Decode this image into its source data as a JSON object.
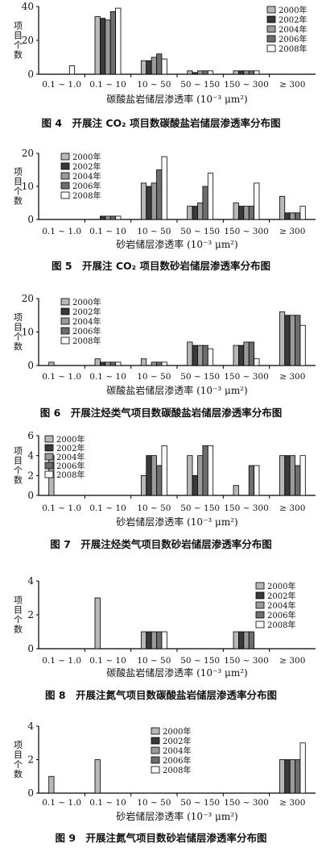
{
  "legend_years": [
    "2000年",
    "2002年",
    "2004年",
    "2006年",
    "2008年"
  ],
  "series_colors": [
    "#b8b8b8",
    "#3a3a3a",
    "#9a9a9a",
    "#6e6e6e",
    "#fafafa"
  ],
  "chart_data": [
    {
      "type": "bar",
      "caption": "图 4　开展注 CO₂ 项目数碳酸盐岩储层渗透率分布图",
      "xlabel": "碳酸盐岩储层渗透率 (10⁻³ μm²)",
      "ylabel": "项目个数",
      "ylim": [
        0,
        40
      ],
      "yticks": [
        0,
        20,
        40
      ],
      "legend": "top-right",
      "categories": [
        "0.1 ~ 1.0",
        "0.1 ~ 10",
        "10 ~ 50",
        "50 ~ 150",
        "150 ~ 300",
        "≥ 300"
      ],
      "series": [
        {
          "name": "2000年",
          "values": [
            0,
            34,
            8,
            2,
            2,
            0
          ]
        },
        {
          "name": "2002年",
          "values": [
            0,
            33,
            8,
            1,
            2,
            0
          ]
        },
        {
          "name": "2004年",
          "values": [
            0,
            32,
            10,
            2,
            2,
            0
          ]
        },
        {
          "name": "2006年",
          "values": [
            0,
            37,
            12,
            2,
            2,
            0
          ]
        },
        {
          "name": "2008年",
          "values": [
            5,
            39,
            9,
            2,
            2,
            0
          ]
        }
      ]
    },
    {
      "type": "bar",
      "caption": "图 5　开展注 CO₂ 项目数砂岩储层渗透率分布图",
      "xlabel": "砂岩储层渗透率 (10⁻³ μm²)",
      "ylabel": "项目个数",
      "ylim": [
        0,
        20
      ],
      "yticks": [
        0,
        10,
        20
      ],
      "legend": "top-left",
      "categories": [
        "0.1 ~ 1.0",
        "0.1 ~ 10",
        "10 ~ 50",
        "50 ~ 150",
        "150 ~ 300",
        "≥ 300"
      ],
      "series": [
        {
          "name": "2000年",
          "values": [
            0,
            0,
            11,
            4,
            5,
            7
          ]
        },
        {
          "name": "2002年",
          "values": [
            0,
            1,
            10,
            4,
            4,
            2
          ]
        },
        {
          "name": "2004年",
          "values": [
            0,
            1,
            11,
            5,
            4,
            2
          ]
        },
        {
          "name": "2006年",
          "values": [
            0,
            1,
            15,
            10,
            4,
            2
          ]
        },
        {
          "name": "2008年",
          "values": [
            0,
            1,
            19,
            14,
            11,
            4
          ]
        }
      ]
    },
    {
      "type": "bar",
      "caption": "图 6　开展注烃类气项目数碳酸盐岩储层渗透率分布图",
      "xlabel": "碳酸盐岩储层渗透率 (10⁻³ μm²)",
      "ylabel": "项目个数",
      "ylim": [
        0,
        20
      ],
      "yticks": [
        0,
        10,
        20
      ],
      "legend": "top-left",
      "categories": [
        "0.1 ~ 1.0",
        "0.1 ~ 10",
        "10 ~ 50",
        "50 ~ 150",
        "150 ~ 300",
        "≥ 300"
      ],
      "series": [
        {
          "name": "2000年",
          "values": [
            1,
            2,
            2,
            7,
            6,
            16
          ]
        },
        {
          "name": "2002年",
          "values": [
            0,
            1,
            0,
            6,
            6,
            15
          ]
        },
        {
          "name": "2004年",
          "values": [
            0,
            1,
            1,
            6,
            7,
            15
          ]
        },
        {
          "name": "2006年",
          "values": [
            0,
            1,
            1,
            6,
            7,
            15
          ]
        },
        {
          "name": "2008年",
          "values": [
            0,
            1,
            1,
            5,
            2,
            12
          ]
        }
      ]
    },
    {
      "type": "bar",
      "caption": "图 7　开展注烃类气项目数砂岩储层渗透率分布图",
      "xlabel": "砂岩储层渗透率 (10⁻³ μm²)",
      "ylabel": "项目个数",
      "ylim": [
        0,
        6
      ],
      "yticks": [
        0,
        2,
        4,
        6
      ],
      "legend": "top-left",
      "categories": [
        "0.1 ~ 1.0",
        "0.1 ~ 10",
        "10 ~ 50",
        "50 ~ 150",
        "150 ~ 300",
        "≥ 300"
      ],
      "series": [
        {
          "name": "2000年",
          "values": [
            4,
            0,
            2,
            4,
            1,
            4
          ]
        },
        {
          "name": "2002年",
          "values": [
            0,
            0,
            4,
            2,
            0,
            4
          ]
        },
        {
          "name": "2004年",
          "values": [
            0,
            0,
            4,
            4,
            0,
            4
          ]
        },
        {
          "name": "2006年",
          "values": [
            0,
            0,
            3,
            5,
            3,
            3
          ]
        },
        {
          "name": "2008年",
          "values": [
            0,
            0,
            5,
            5,
            3,
            4
          ]
        }
      ]
    },
    {
      "type": "bar",
      "caption": "图 8　开展注氮气项目数碳酸盐岩储层渗透率分布图",
      "xlabel": "碳酸盐岩储层渗透率 (10⁻³ μm²)",
      "ylabel": "项目个数",
      "ylim": [
        0,
        4
      ],
      "yticks": [
        0,
        2,
        4
      ],
      "legend": "top-right",
      "categories": [
        "0.1 ~ 1.0",
        "0.1 ~ 10",
        "10 ~ 50",
        "50 ~ 150",
        "150 ~ 300",
        "≥ 300"
      ],
      "series": [
        {
          "name": "2000年",
          "values": [
            0,
            3,
            1,
            0,
            1,
            0
          ]
        },
        {
          "name": "2002年",
          "values": [
            0,
            0,
            1,
            0,
            1,
            0
          ]
        },
        {
          "name": "2004年",
          "values": [
            0,
            0,
            1,
            0,
            1,
            0
          ]
        },
        {
          "name": "2006年",
          "values": [
            0,
            0,
            1,
            0,
            1,
            0
          ]
        },
        {
          "name": "2008年",
          "values": [
            0,
            0,
            1,
            0,
            0,
            0
          ]
        }
      ]
    },
    {
      "type": "bar",
      "caption": "图 9　开展注氮气项目数砂岩储层渗透率分布图",
      "xlabel": "砂岩储层渗透率 (10⁻³ μm²)",
      "ylabel": "项目个数",
      "ylim": [
        0,
        4
      ],
      "yticks": [
        0,
        2,
        4
      ],
      "legend": "top-center",
      "categories": [
        "0.1 ~ 1.0",
        "0.1 ~ 10",
        "10 ~ 50",
        "50 ~ 150",
        "150 ~ 300",
        "≥ 300"
      ],
      "series": [
        {
          "name": "2000年",
          "values": [
            1,
            2,
            0,
            0,
            0,
            2
          ]
        },
        {
          "name": "2002年",
          "values": [
            0,
            0,
            0,
            0,
            0,
            2
          ]
        },
        {
          "name": "2004年",
          "values": [
            0,
            0,
            0,
            0,
            0,
            2
          ]
        },
        {
          "name": "2006年",
          "values": [
            0,
            0,
            0,
            0,
            0,
            2
          ]
        },
        {
          "name": "2008年",
          "values": [
            0,
            0,
            0,
            0,
            0,
            3
          ]
        }
      ]
    }
  ]
}
